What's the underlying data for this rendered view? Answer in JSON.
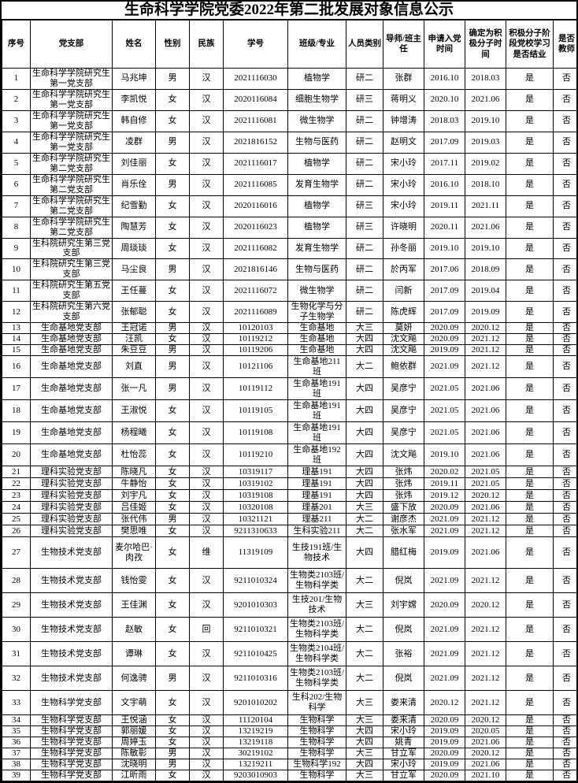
{
  "title": "生命科学学院党委2022年第二批发展对象信息公示",
  "colors": {
    "background": "#ffffff",
    "border": "#000000",
    "text": "#000000"
  },
  "table": {
    "headers": [
      "序号",
      "党支部",
      "姓名",
      "性别",
      "民族",
      "学号",
      "班级/专业",
      "人员类别",
      "导师/班主任",
      "申请入党时间",
      "确定为积极分子时间",
      "积极分子阶段党校学习是否结业",
      "是否教师"
    ],
    "rows": [
      [
        "1",
        "生命科学学院研究生第一党支部",
        "马兆坤",
        "男",
        "汉",
        "2021116030",
        "植物学",
        "研二",
        "张群",
        "2016.10",
        "2018.03",
        "是",
        "否"
      ],
      [
        "2",
        "生命科学学院研究生第一党支部",
        "李凯悦",
        "女",
        "汉",
        "2020116084",
        "细胞生物学",
        "研三",
        "蒋明义",
        "2020.10",
        "2021.06",
        "是",
        "否"
      ],
      [
        "3",
        "生命科学学院研究生第一党支部",
        "韩自修",
        "女",
        "汉",
        "2021116081",
        "微生物学",
        "研二",
        "钟增涛",
        "2018.03",
        "2019.10",
        "是",
        "否"
      ],
      [
        "4",
        "生命科学学院研究生第一党支部",
        "凌群",
        "男",
        "汉",
        "2021816152",
        "生物与医药",
        "研二",
        "赵明文",
        "2017.09",
        "2019.03",
        "是",
        "否"
      ],
      [
        "5",
        "生命科学学院研究生第二党支部",
        "刘佳丽",
        "女",
        "汉",
        "2021116017",
        "植物学",
        "研二",
        "宋小玲",
        "2017.11",
        "2019.02",
        "是",
        "否"
      ],
      [
        "6",
        "生命科学学院研究生第二党支部",
        "肖乐佺",
        "男",
        "汉",
        "2021116085",
        "发育生物学",
        "研二",
        "宋小玲",
        "2016.10",
        "2018.10",
        "是",
        "否"
      ],
      [
        "7",
        "生命科学学院研究生第二党支部",
        "纪雪勤",
        "女",
        "汉",
        "2020116016",
        "植物学",
        "研三",
        "宋小玲",
        "2019.11",
        "2021.11",
        "是",
        "否"
      ],
      [
        "8",
        "生命科学学院研究生第二党支部",
        "陶慧芳",
        "女",
        "汉",
        "2020116023",
        "植物学",
        "研三",
        "许晓明",
        "2020.11",
        "2021.06",
        "是",
        "否"
      ],
      [
        "9",
        "生科院研究生第三党支部",
        "周琰琰",
        "女",
        "汉",
        "2021116082",
        "发育生物学",
        "研二",
        "孙冬丽",
        "2019.10",
        "2019.10",
        "是",
        "否"
      ],
      [
        "10",
        "生科院研究生第三党支部",
        "马尘良",
        "男",
        "汉",
        "2021816146",
        "生物与医药",
        "研二",
        "於丙军",
        "2017.06",
        "2018.09",
        "是",
        "否"
      ],
      [
        "11",
        "生科院研究生第五党支部",
        "王任蔓",
        "女",
        "汉",
        "2021116072",
        "微生物学",
        "研二",
        "闫新",
        "2017.09",
        "2019.04",
        "是",
        "否"
      ],
      [
        "12",
        "生科院研究生第六党支部",
        "张郁聪",
        "女",
        "汉",
        "2021116089",
        "生物化学与分子生物学",
        "研二",
        "陈虎辉",
        "2017.09",
        "2019.09",
        "是",
        "否"
      ],
      [
        "13",
        "生命基地党支部",
        "王冠诺",
        "男",
        "汉",
        "10120103",
        "生命基地",
        "大三",
        "莫妍",
        "2020.09",
        "2020.12",
        "是",
        "否"
      ],
      [
        "14",
        "生命基地党支部",
        "汪凯",
        "女",
        "汉",
        "10119212",
        "生命基地",
        "大四",
        "沈文飚",
        "2020.09",
        "2021.12",
        "是",
        "否"
      ],
      [
        "15",
        "生命基地党支部",
        "朱豆豆",
        "男",
        "汉",
        "10119206",
        "生命基地",
        "大四",
        "沈文飚",
        "2019.09",
        "2021.12",
        "是",
        "否"
      ],
      [
        "16",
        "生命基地党支部",
        "刘直",
        "男",
        "汉",
        "10121106",
        "生命基地211班",
        "大二",
        "鲍依群",
        "2021.09",
        "2021.12",
        "是",
        "否"
      ],
      [
        "17",
        "生命基地党支部",
        "张一凡",
        "男",
        "汉",
        "10119112",
        "生命基地191班",
        "大四",
        "吴彦宁",
        "2021.05",
        "2021.06",
        "是",
        "否"
      ],
      [
        "18",
        "生命基地党支部",
        "王淑悦",
        "女",
        "汉",
        "10119105",
        "生命基地191班",
        "大四",
        "吴彦宁",
        "2021.05",
        "2021.06",
        "是",
        "否"
      ],
      [
        "19",
        "生命基地党支部",
        "杨程曦",
        "女",
        "汉",
        "10119108",
        "生命基地191班",
        "大四",
        "吴彦宁",
        "2021.05",
        "2021.06",
        "是",
        "否"
      ],
      [
        "20",
        "生命基地党支部",
        "杜怡蕊",
        "女",
        "汉",
        "10119210",
        "生命基地192班",
        "大四",
        "沈文飚",
        "2019.10",
        "2021.06",
        "是",
        "否"
      ],
      [
        "21",
        "理科实验党支部",
        "陈晓凡",
        "女",
        "汉",
        "10319117",
        "理基191",
        "大四",
        "张炜",
        "2020.02",
        "2021.05",
        "是",
        "否"
      ],
      [
        "22",
        "理科实验党支部",
        "牛静怡",
        "女",
        "汉",
        "10319102",
        "理基191",
        "大四",
        "张炜",
        "2019.11",
        "2021.05",
        "是",
        "否"
      ],
      [
        "23",
        "理科实验党支部",
        "刘宇凡",
        "女",
        "汉",
        "10319108",
        "理基191",
        "大四",
        "张炜",
        "2019.12",
        "2020.12",
        "是",
        "否"
      ],
      [
        "24",
        "理科实验党支部",
        "吕佳姬",
        "女",
        "汉",
        "10320108",
        "理基201",
        "大三",
        "盛下放",
        "2020.09",
        "2021.06",
        "是",
        "否"
      ],
      [
        "25",
        "理科实验党支部",
        "张代伟",
        "男",
        "汉",
        "10321121",
        "理基211",
        "大二",
        "谢彦杰",
        "2021.09",
        "2021.12",
        "是",
        "否"
      ],
      [
        "26",
        "理科实验党支部",
        "樊思唯",
        "女",
        "汉",
        "9211310633",
        "生科实验211",
        "大二",
        "张水军",
        "2021.09",
        "2021.12",
        "是",
        "否"
      ],
      [
        "27",
        "生物技术党支部",
        "麦尔哈巴·肉孜",
        "女",
        "维",
        "11319109",
        "生技191班/生物技术",
        "大四",
        "腊红梅",
        "2019.09",
        "2021.06",
        "是",
        "否"
      ],
      [
        "28",
        "生物技术党支部",
        "钱怡雯",
        "女",
        "汉",
        "9211010324",
        "生物类2103班/生物科学类",
        "大二",
        "倪岚",
        "2021.09",
        "2021.12",
        "是",
        "否"
      ],
      [
        "29",
        "生物技术党支部",
        "王佳渊",
        "女",
        "汉",
        "9201010303",
        "生技201/生物技术",
        "大三",
        "刘宇嫦",
        "2020.09",
        "2020.12",
        "是",
        "否"
      ],
      [
        "30",
        "生物技术党支部",
        "赵敏",
        "女",
        "回",
        "9211010321",
        "生物类2103班/生物科学类",
        "大二",
        "倪岚",
        "2021.09",
        "2021.12",
        "是",
        "否"
      ],
      [
        "31",
        "生物技术党支部",
        "谭琳",
        "女",
        "汉",
        "9211010425",
        "生物类2104班/生物科学类",
        "大二",
        "张裕",
        "2021.09",
        "2021.12",
        "是",
        "否"
      ],
      [
        "32",
        "生物技术党支部",
        "何逸骋",
        "男",
        "汉",
        "9211010316",
        "生物类2103班/生物科学类",
        "大二",
        "倪岚",
        "2021.09",
        "2021.12",
        "是",
        "否"
      ],
      [
        "33",
        "生物科学党支部",
        "文宇萌",
        "女",
        "汉",
        "9201010202",
        "生科202/生物科学",
        "大三",
        "娄来清",
        "2020.12",
        "2021.12",
        "是",
        "否"
      ],
      [
        "34",
        "生物科学党支部",
        "王悦涵",
        "女",
        "汉",
        "11120104",
        "生物科学",
        "大三",
        "娄来清",
        "2020.09",
        "2020.12",
        "是",
        "否"
      ],
      [
        "35",
        "生物科学党支部",
        "郭丽媛",
        "女",
        "汉",
        "13219219",
        "生物科学",
        "大四",
        "宋小玲",
        "2019.09",
        "2020.05",
        "是",
        "否"
      ],
      [
        "36",
        "生物科学党支部",
        "周婷玉",
        "女",
        "汉",
        "13219118",
        "生物科学",
        "大四",
        "姚青",
        "2019.09",
        "2021.06",
        "是",
        "否"
      ],
      [
        "37",
        "生物科学党支部",
        "陈敏彰",
        "男",
        "汉",
        "30219102",
        "生物科学",
        "大三",
        "甘立军",
        "2020.09",
        "2020.12",
        "是",
        "否"
      ],
      [
        "38",
        "生物科学党支部",
        "沈晓明",
        "男",
        "汉",
        "13219211",
        "生物科学192",
        "大四",
        "宋小玲",
        "2019.09",
        "2021.06",
        "是",
        "否"
      ],
      [
        "39",
        "生物科学党支部",
        "江昕雨",
        "女",
        "汉",
        "9203010903",
        "生物科学",
        "大三",
        "甘立军",
        "2020.09",
        "2021.10",
        "是",
        "否"
      ]
    ]
  }
}
